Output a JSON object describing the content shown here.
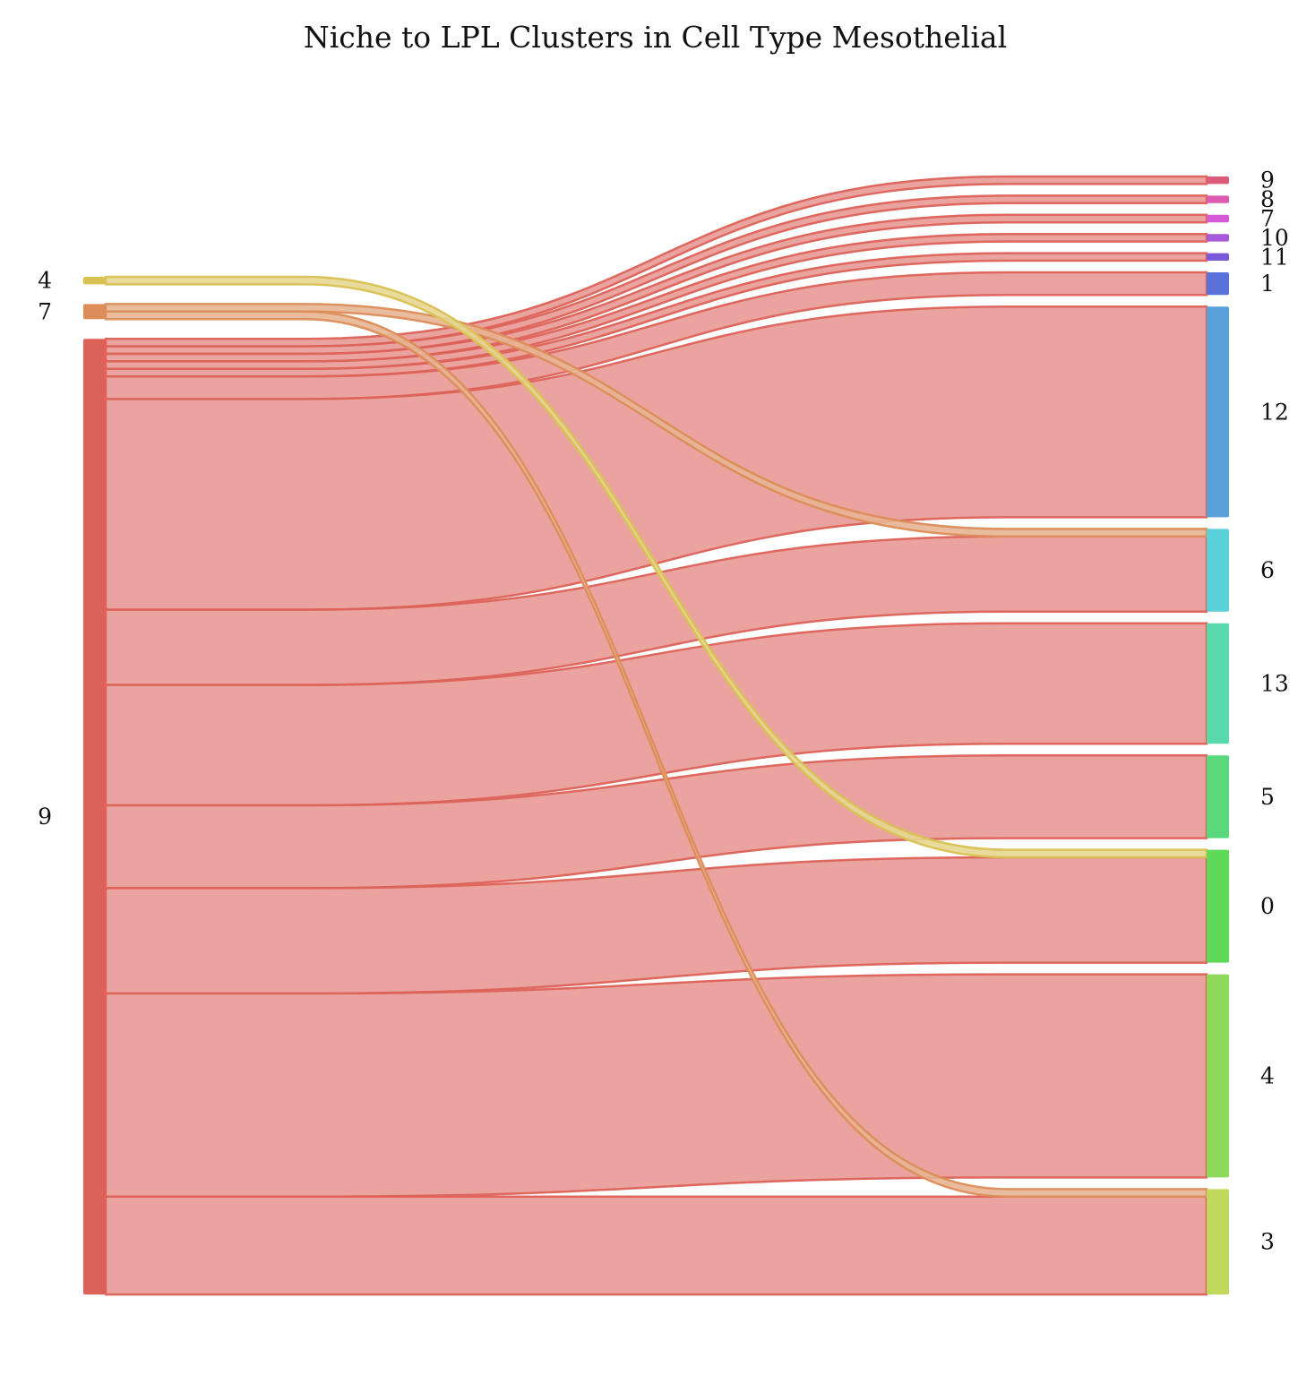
{
  "chart_data": {
    "type": "sankey",
    "title": "Niche to LPL Clusters in Cell Type Mesothelial",
    "sources": [
      {
        "id": "s4",
        "label": "4",
        "color": "#d9c154"
      },
      {
        "id": "s7",
        "label": "7",
        "color": "#dc8d5a"
      },
      {
        "id": "s9",
        "label": "9",
        "color": "#dc6259"
      }
    ],
    "targets": [
      {
        "id": "t9",
        "label": "9",
        "color": "#dc5a7a"
      },
      {
        "id": "t8",
        "label": "8",
        "color": "#dc5aaf"
      },
      {
        "id": "t7",
        "label": "7",
        "color": "#d45ad9"
      },
      {
        "id": "t10",
        "label": "10",
        "color": "#a65ad9"
      },
      {
        "id": "t11",
        "label": "11",
        "color": "#7a5ad9"
      },
      {
        "id": "t1",
        "label": "1",
        "color": "#5a71d9"
      },
      {
        "id": "t12",
        "label": "12",
        "color": "#5aa0d9"
      },
      {
        "id": "t6",
        "label": "6",
        "color": "#5ad0d9"
      },
      {
        "id": "t13",
        "label": "13",
        "color": "#5ad9ad"
      },
      {
        "id": "t5",
        "label": "5",
        "color": "#5ad97c"
      },
      {
        "id": "t0",
        "label": "0",
        "color": "#5fd95a"
      },
      {
        "id": "t4",
        "label": "4",
        "color": "#8fd95a"
      },
      {
        "id": "t3",
        "label": "3",
        "color": "#c1d95a"
      }
    ],
    "links": [
      {
        "source": "s4",
        "target": "t0",
        "value": 1
      },
      {
        "source": "s7",
        "target": "t6",
        "value": 1
      },
      {
        "source": "s7",
        "target": "t3",
        "value": 1
      },
      {
        "source": "s9",
        "target": "t9",
        "value": 1
      },
      {
        "source": "s9",
        "target": "t8",
        "value": 1
      },
      {
        "source": "s9",
        "target": "t7",
        "value": 1
      },
      {
        "source": "s9",
        "target": "t10",
        "value": 1
      },
      {
        "source": "s9",
        "target": "t11",
        "value": 1
      },
      {
        "source": "s9",
        "target": "t1",
        "value": 3
      },
      {
        "source": "s9",
        "target": "t12",
        "value": 28
      },
      {
        "source": "s9",
        "target": "t6",
        "value": 10
      },
      {
        "source": "s9",
        "target": "t13",
        "value": 16
      },
      {
        "source": "s9",
        "target": "t5",
        "value": 11
      },
      {
        "source": "s9",
        "target": "t0",
        "value": 14
      },
      {
        "source": "s9",
        "target": "t4",
        "value": 27
      },
      {
        "source": "s9",
        "target": "t3",
        "value": 13
      }
    ]
  }
}
